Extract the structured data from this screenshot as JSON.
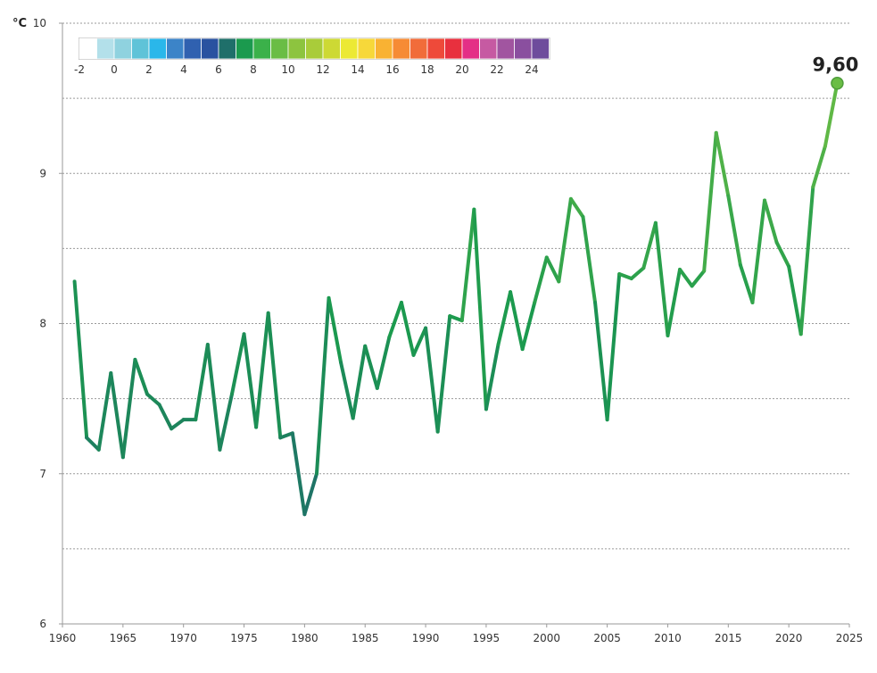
{
  "chart_data": {
    "type": "line",
    "y_unit": "°C",
    "xlim": [
      1960,
      2025
    ],
    "ylim": [
      6,
      10
    ],
    "x_ticks": [
      "1960",
      "1965",
      "1970",
      "1975",
      "1980",
      "1985",
      "1990",
      "1995",
      "2000",
      "2005",
      "2010",
      "2015",
      "2020",
      "2025"
    ],
    "y_ticks": [
      "6",
      "7",
      "8",
      "9",
      "10"
    ],
    "grid": "horizontal dashed at every 0.5",
    "last_value_label": "9,60",
    "color_scale": {
      "position": "top-left",
      "labels": [
        "-2",
        "0",
        "2",
        "4",
        "6",
        "8",
        "10",
        "12",
        "14",
        "16",
        "18",
        "20",
        "22",
        "24"
      ],
      "colors": [
        "#ffffff",
        "#b3e0ea",
        "#8fd2df",
        "#5fc3d8",
        "#2ab7ea",
        "#3c84c8",
        "#3061b0",
        "#2a52a0",
        "#1f6f6a",
        "#1b9a4e",
        "#3bb14a",
        "#6abd45",
        "#8dc43f",
        "#a9cc3a",
        "#cdd934",
        "#ece934",
        "#f7d83a",
        "#f9b233",
        "#f68b35",
        "#f16c3a",
        "#ee4a3a",
        "#e8303e",
        "#e42f86",
        "#c65aa2",
        "#a155a0",
        "#8a4f9f",
        "#6e4c9c"
      ]
    },
    "series": [
      {
        "x": [
          1961,
          1962,
          1963,
          1964,
          1965,
          1966,
          1967,
          1968,
          1969,
          1970,
          1971,
          1972,
          1973,
          1974,
          1975,
          1976,
          1977,
          1978,
          1979,
          1980,
          1981,
          1982,
          1983,
          1984,
          1985,
          1986,
          1987,
          1988,
          1989,
          1990,
          1991,
          1992,
          1993,
          1994,
          1995,
          1996,
          1997,
          1998,
          1999,
          2000,
          2001,
          2002,
          2003,
          2004,
          2005,
          2006,
          2007,
          2008,
          2009,
          2010,
          2011,
          2012,
          2013,
          2014,
          2015,
          2016,
          2017,
          2018,
          2019,
          2020,
          2021,
          2022,
          2023,
          2024
        ],
        "values": [
          8.28,
          7.24,
          7.16,
          7.67,
          7.11,
          7.76,
          7.53,
          7.46,
          7.3,
          7.36,
          7.36,
          7.86,
          7.16,
          7.53,
          7.93,
          7.31,
          8.07,
          7.24,
          7.27,
          6.73,
          7.0,
          8.17,
          7.74,
          7.37,
          7.85,
          7.57,
          7.91,
          8.14,
          7.79,
          7.97,
          7.28,
          8.05,
          8.02,
          8.76,
          7.43,
          7.86,
          8.21,
          7.83,
          8.14,
          8.44,
          8.28,
          8.83,
          8.71,
          8.14,
          7.36,
          8.33,
          8.3,
          8.37,
          8.67,
          7.92,
          8.36,
          8.25,
          8.35,
          9.27,
          8.85,
          8.39,
          8.14,
          8.82,
          8.54,
          8.38,
          7.93,
          8.91,
          9.18,
          9.6
        ]
      }
    ]
  }
}
